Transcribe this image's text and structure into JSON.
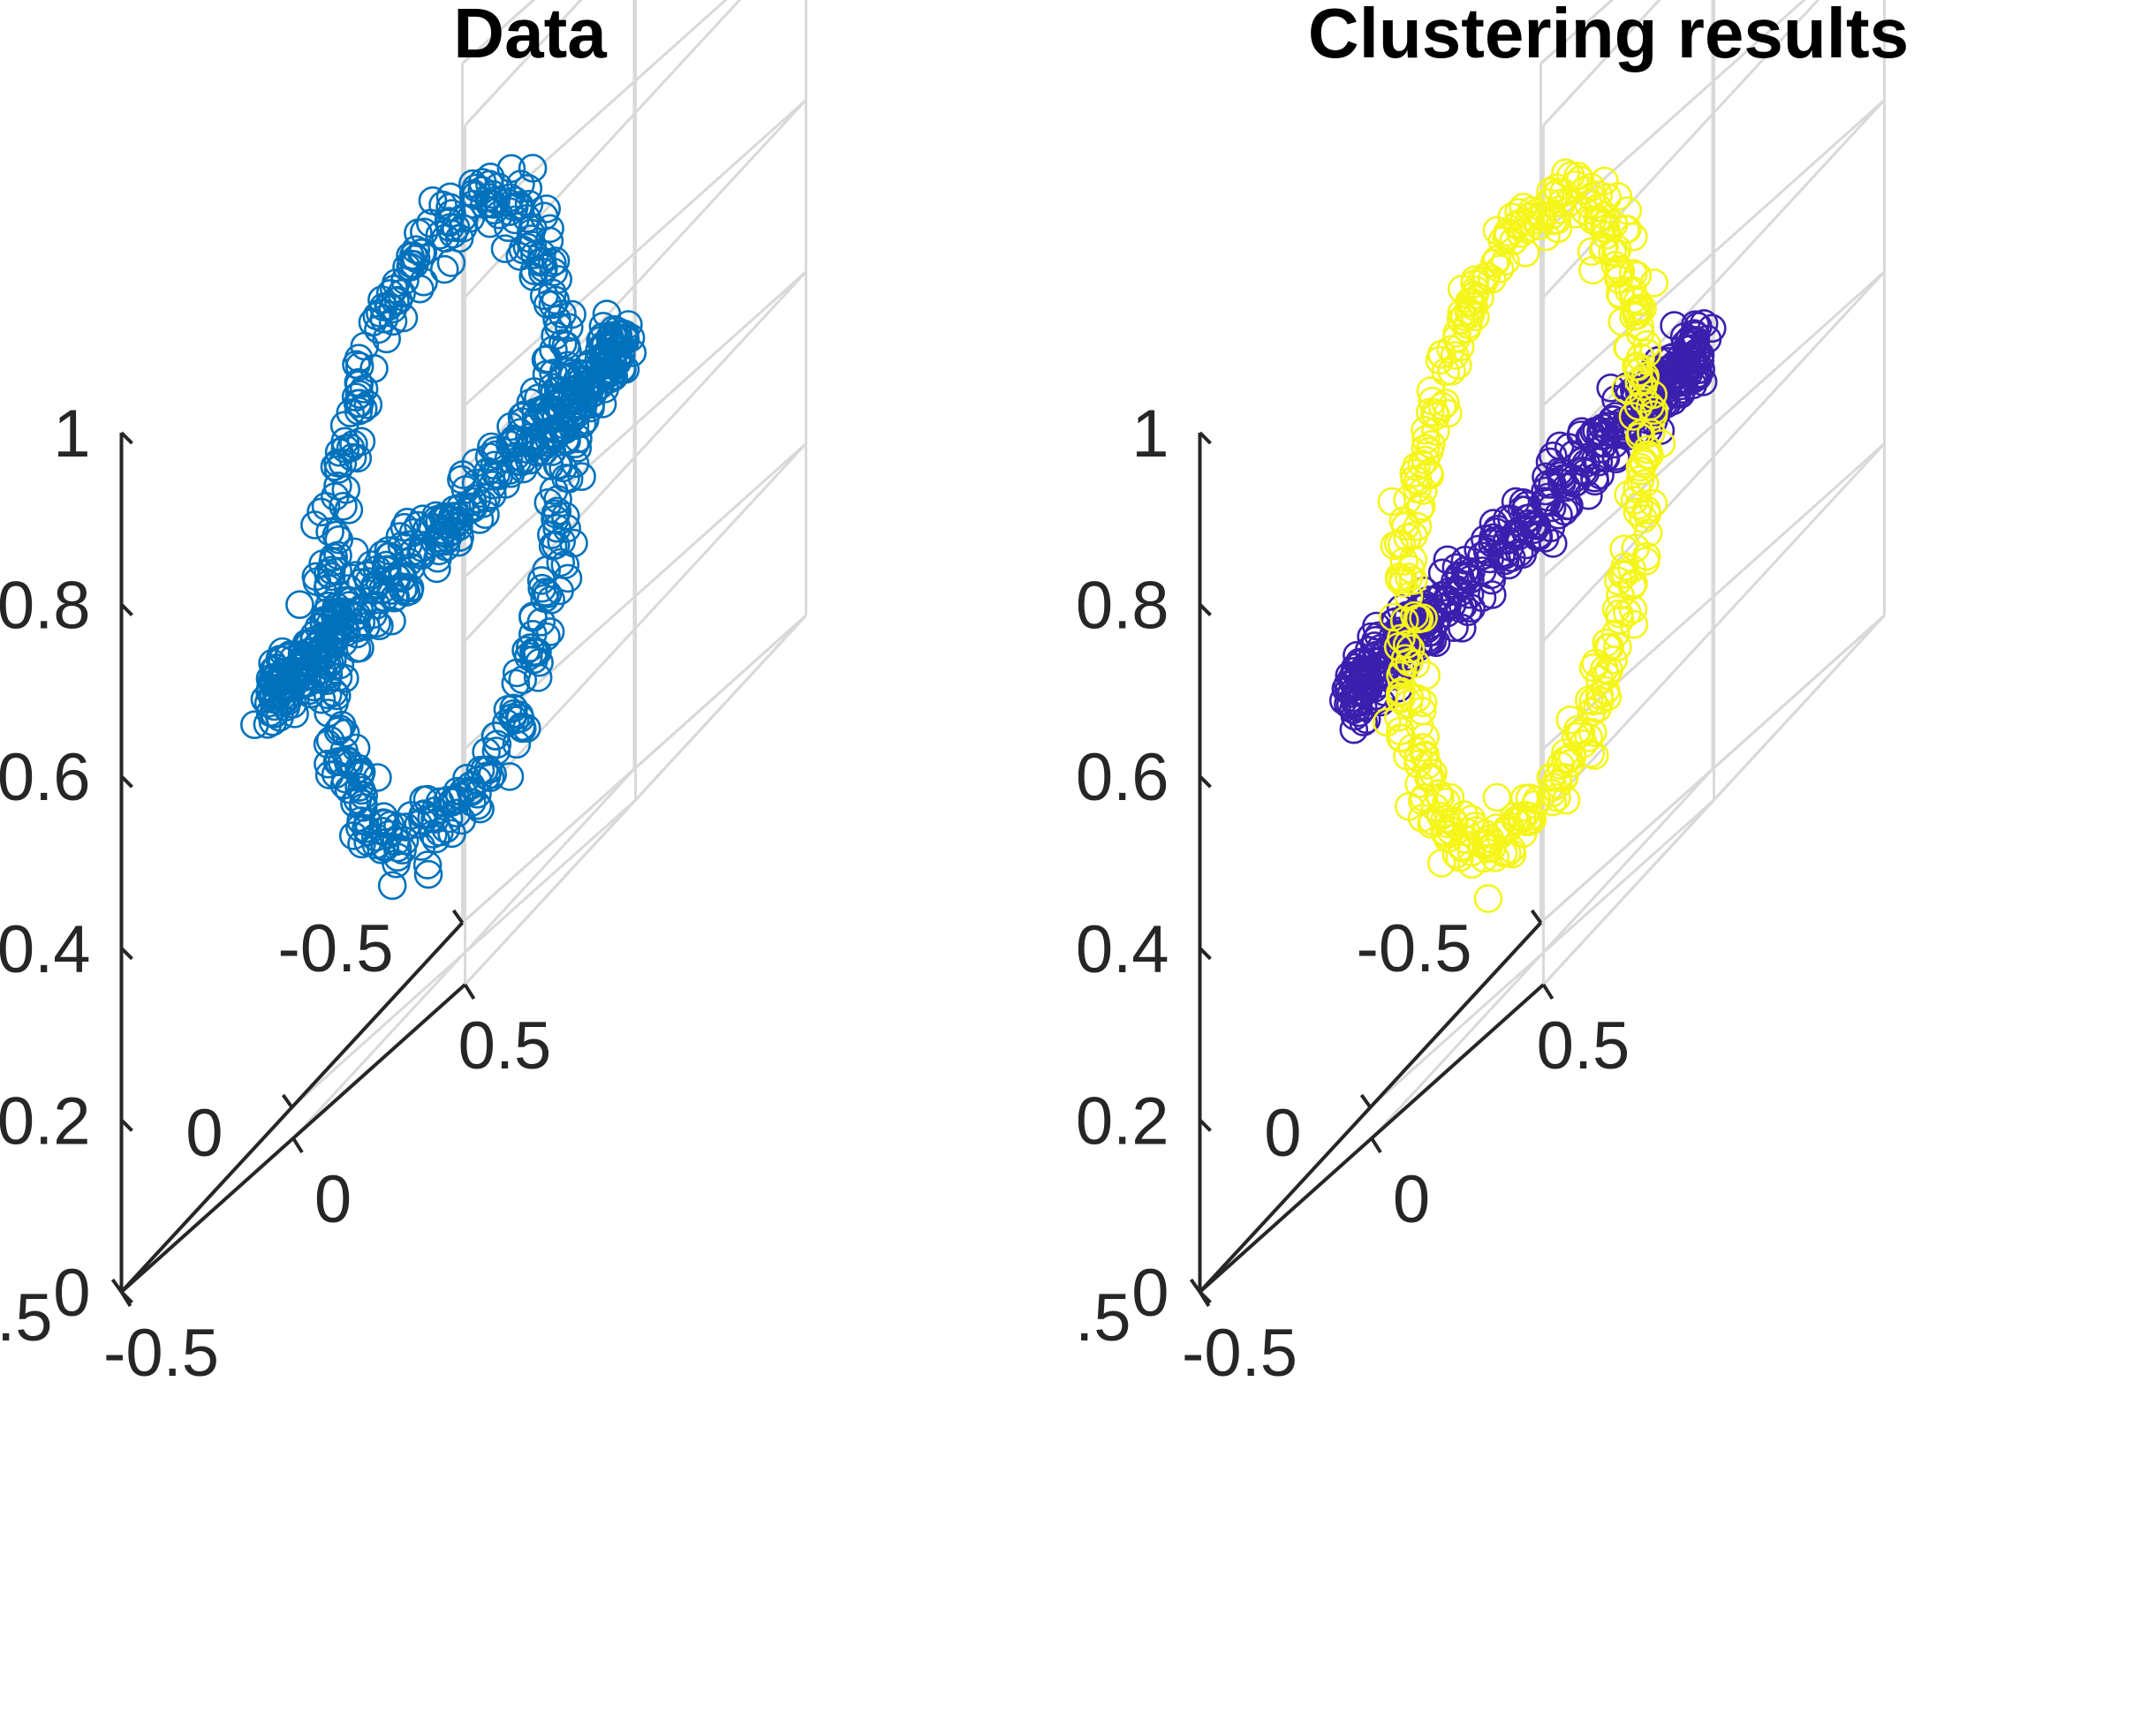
{
  "chart_data": [
    {
      "type": "scatter",
      "title": "Data",
      "projection": "3-D scatter, oblique view, markers 'o'",
      "xlim": [
        -0.5,
        0.5
      ],
      "ylim": [
        -0.5,
        0.5
      ],
      "zlim": [
        0,
        1
      ],
      "x_ticks": [
        "-0.5",
        "0",
        "0.5"
      ],
      "y_ticks": [
        "-0.5",
        "0",
        "0.5"
      ],
      "z_ticks": [
        "0",
        "0.2",
        "0.4",
        "0.6",
        "0.8",
        "1"
      ],
      "grid": true,
      "series": [
        {
          "color": "#0072BD",
          "points": 800,
          "shape": "two interlocked rings"
        }
      ]
    },
    {
      "type": "scatter",
      "title": "Clustering results",
      "projection": "3-D scatter, oblique view, markers 'o'",
      "xlim": [
        -0.5,
        0.5
      ],
      "ylim": [
        -0.5,
        0.5
      ],
      "zlim": [
        0,
        1
      ],
      "x_ticks": [
        "-0.5",
        "0",
        "0.5"
      ],
      "y_ticks": [
        "-0.5",
        "0",
        "0.5"
      ],
      "z_ticks": [
        "0",
        "0.2",
        "0.4",
        "0.6",
        "0.8",
        "1"
      ],
      "grid": true,
      "series": [
        {
          "color": "#3B1FAE",
          "points": 400,
          "shape": "horizontal ring (cluster 1)"
        },
        {
          "color": "#F5F51A",
          "points": 400,
          "shape": "vertical ring (cluster 2)"
        }
      ]
    }
  ]
}
